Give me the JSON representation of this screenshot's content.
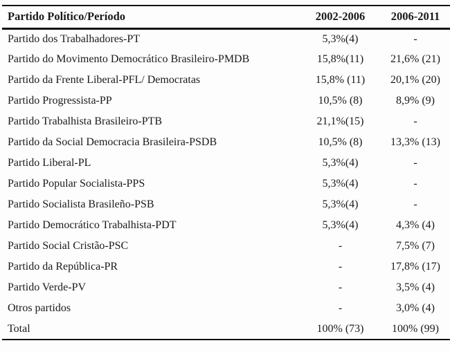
{
  "colors": {
    "background": "#fdfdfd",
    "text": "#1a1a1a",
    "rule": "#111111"
  },
  "table": {
    "header": {
      "col1": "Partido Político/Período",
      "col2": "2002-2006",
      "col3": "2006-2011"
    },
    "rows": [
      {
        "party": "Partido dos Trabalhadores-PT",
        "p2002_2006": "5,3%(4)",
        "p2006_2011": "-"
      },
      {
        "party": "Partido do Movimento Democrático Brasileiro-PMDB",
        "p2002_2006": "15,8%(11)",
        "p2006_2011": "21,6% (21)"
      },
      {
        "party": "Partido da Frente Liberal-PFL/ Democratas",
        "p2002_2006": "15,8% (11)",
        "p2006_2011": "20,1% (20)"
      },
      {
        "party": "Partido Progressista-PP",
        "p2002_2006": "10,5% (8)",
        "p2006_2011": "8,9% (9)"
      },
      {
        "party": "Partido Trabalhista Brasileiro-PTB",
        "p2002_2006": "21,1%(15)",
        "p2006_2011": "-"
      },
      {
        "party": "Partido da Social Democracia Brasileira-PSDB",
        "p2002_2006": "10,5% (8)",
        "p2006_2011": "13,3% (13)"
      },
      {
        "party": "Partido Liberal-PL",
        "p2002_2006": "5,3%(4)",
        "p2006_2011": "-"
      },
      {
        "party": "Partido Popular Socialista-PPS",
        "p2002_2006": "5,3%(4)",
        "p2006_2011": "-"
      },
      {
        "party": "Partido Socialista Brasileño-PSB",
        "p2002_2006": "5,3%(4)",
        "p2006_2011": "-"
      },
      {
        "party": "Partido Democrático Trabalhista-PDT",
        "p2002_2006": "5,3%(4)",
        "p2006_2011": "4,3% (4)"
      },
      {
        "party": "Partido Social Cristão-PSC",
        "p2002_2006": "-",
        "p2006_2011": "7,5% (7)"
      },
      {
        "party": "Partido da República-PR",
        "p2002_2006": "-",
        "p2006_2011": "17,8% (17)"
      },
      {
        "party": "Partido Verde-PV",
        "p2002_2006": "-",
        "p2006_2011": "3,5% (4)"
      },
      {
        "party": "Otros partidos",
        "p2002_2006": "-",
        "p2006_2011": "3,0% (4)"
      },
      {
        "party": "Total",
        "p2002_2006": "100% (73)",
        "p2006_2011": "100% (99)"
      }
    ]
  }
}
